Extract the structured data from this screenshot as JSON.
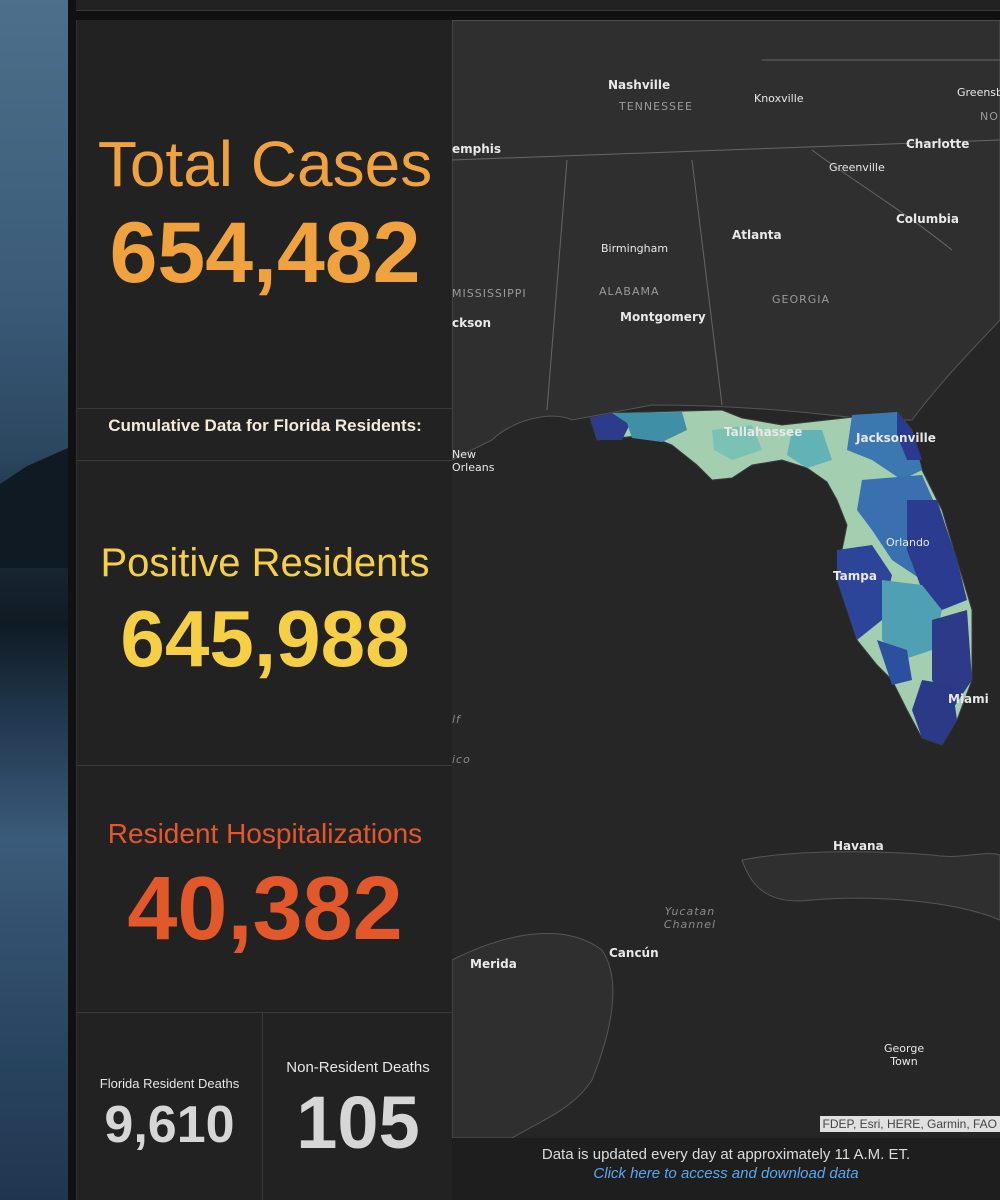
{
  "stats": {
    "total_cases_label": "Total Cases",
    "total_cases_value": "654,482",
    "cumulative_header": "Cumulative Data for Florida Residents:",
    "positive_label": "Positive Residents",
    "positive_value": "645,988",
    "hosp_label": "Resident Hospitalizations",
    "hosp_value": "40,382",
    "res_deaths_label": "Florida Resident Deaths",
    "res_deaths_value": "9,610",
    "nonres_deaths_label": "Non-Resident Deaths",
    "nonres_deaths_value": "105"
  },
  "colors": {
    "total": "#f0a23e",
    "positive": "#f7cf45",
    "hosp": "#e2582a",
    "deaths": "#d6d6d6",
    "map_land": "#2f2f2f",
    "map_water": "#262626"
  },
  "map": {
    "cities": [
      "Nashville",
      "Knoxville",
      "Greensb",
      "Charlotte",
      "Greenville",
      "Columbia",
      "Atlanta",
      "Birmingham",
      "Montgomery",
      "emphis",
      "ckson",
      "New Orleans",
      "Tallahassee",
      "Jacksonville",
      "Orlando",
      "Tampa",
      "Miami",
      "Havana",
      "Merida",
      "Cancún",
      "George Town"
    ],
    "states": [
      "TENNESSEE",
      "ALABAMA",
      "GEORGIA",
      "MISSISSIPPI",
      "NO CAR"
    ],
    "water": [
      "Yucatan Channel",
      "lf",
      "ico"
    ],
    "attribution": "FDEP, Esri, HERE, Garmin, FAO"
  },
  "footer": {
    "update_text": "Data is updated every day at approximately 11 A.M. ET.",
    "link_text": "Click here to access and download data"
  }
}
